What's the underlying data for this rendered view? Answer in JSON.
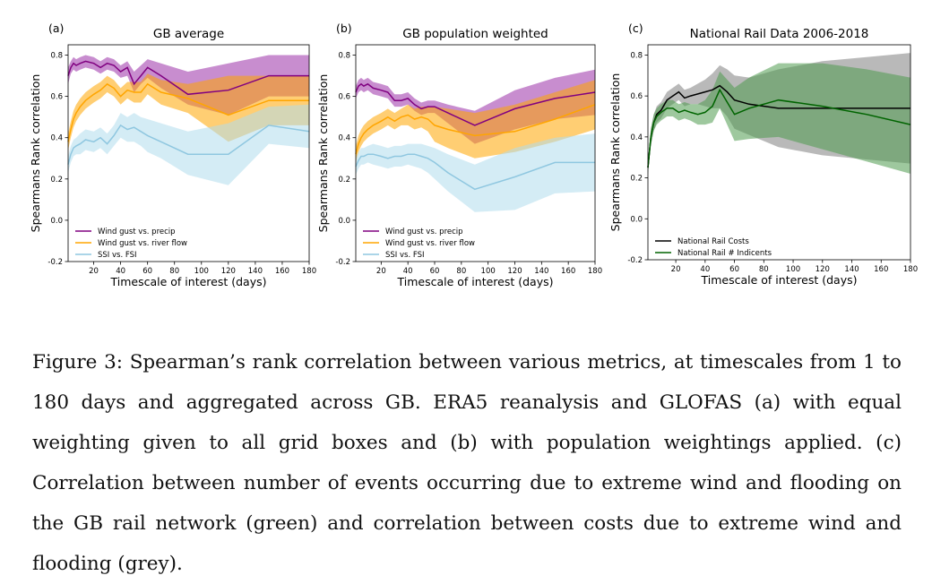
{
  "chart_data": [
    {
      "type": "line",
      "panel_label": "(a)",
      "title": "GB average",
      "xlabel": "Timescale of interest (days)",
      "ylabel": "Spearmans Rank correlation",
      "xlim": [
        1,
        180
      ],
      "ylim": [
        -0.2,
        0.85
      ],
      "xticks": [
        20,
        40,
        60,
        80,
        100,
        120,
        140,
        160,
        180
      ],
      "yticks": [
        -0.2,
        0.0,
        0.2,
        0.4,
        0.6,
        0.8
      ],
      "legend": "bottom-left",
      "series": [
        {
          "name": "Wind gust vs. precip",
          "color": "#800080",
          "band_color": "#9b30a8",
          "x": [
            1,
            3,
            5,
            7,
            10,
            14,
            20,
            25,
            30,
            35,
            40,
            45,
            50,
            55,
            60,
            70,
            90,
            120,
            150,
            180
          ],
          "values": [
            0.7,
            0.74,
            0.76,
            0.75,
            0.76,
            0.77,
            0.76,
            0.74,
            0.76,
            0.75,
            0.72,
            0.74,
            0.66,
            0.7,
            0.74,
            0.7,
            0.61,
            0.63,
            0.7,
            0.7
          ],
          "upper": [
            0.74,
            0.77,
            0.79,
            0.78,
            0.79,
            0.8,
            0.79,
            0.77,
            0.79,
            0.78,
            0.75,
            0.77,
            0.72,
            0.75,
            0.78,
            0.76,
            0.72,
            0.76,
            0.8,
            0.8
          ],
          "lower": [
            0.66,
            0.71,
            0.73,
            0.72,
            0.73,
            0.74,
            0.73,
            0.71,
            0.73,
            0.72,
            0.69,
            0.7,
            0.62,
            0.66,
            0.69,
            0.64,
            0.56,
            0.51,
            0.6,
            0.6
          ]
        },
        {
          "name": "Wind gust vs. river flow",
          "color": "#ffa500",
          "band_color": "#ffa500",
          "x": [
            1,
            3,
            5,
            7,
            10,
            14,
            20,
            25,
            30,
            35,
            40,
            45,
            50,
            55,
            60,
            70,
            90,
            120,
            150,
            180
          ],
          "values": [
            0.38,
            0.44,
            0.49,
            0.52,
            0.55,
            0.58,
            0.61,
            0.63,
            0.66,
            0.64,
            0.6,
            0.63,
            0.62,
            0.62,
            0.66,
            0.62,
            0.59,
            0.51,
            0.58,
            0.58
          ],
          "upper": [
            0.42,
            0.48,
            0.53,
            0.56,
            0.59,
            0.62,
            0.65,
            0.67,
            0.7,
            0.68,
            0.64,
            0.67,
            0.67,
            0.67,
            0.71,
            0.68,
            0.66,
            0.7,
            0.7,
            0.7
          ],
          "lower": [
            0.34,
            0.4,
            0.45,
            0.48,
            0.51,
            0.54,
            0.57,
            0.59,
            0.62,
            0.6,
            0.56,
            0.59,
            0.57,
            0.57,
            0.61,
            0.56,
            0.52,
            0.38,
            0.46,
            0.46
          ]
        },
        {
          "name": "SSI vs. FSI",
          "color": "#8fc7e0",
          "band_color": "#b0dcec",
          "x": [
            1,
            3,
            5,
            7,
            10,
            14,
            20,
            25,
            30,
            35,
            40,
            45,
            50,
            55,
            60,
            70,
            90,
            120,
            150,
            180
          ],
          "values": [
            0.27,
            0.32,
            0.35,
            0.36,
            0.37,
            0.39,
            0.38,
            0.4,
            0.37,
            0.41,
            0.46,
            0.44,
            0.45,
            0.43,
            0.41,
            0.38,
            0.32,
            0.32,
            0.46,
            0.43
          ],
          "upper": [
            0.31,
            0.36,
            0.39,
            0.4,
            0.42,
            0.44,
            0.43,
            0.45,
            0.42,
            0.46,
            0.52,
            0.5,
            0.52,
            0.5,
            0.49,
            0.47,
            0.43,
            0.47,
            0.55,
            0.56
          ],
          "lower": [
            0.23,
            0.28,
            0.31,
            0.32,
            0.32,
            0.34,
            0.33,
            0.35,
            0.32,
            0.36,
            0.4,
            0.38,
            0.38,
            0.36,
            0.33,
            0.3,
            0.22,
            0.17,
            0.37,
            0.35
          ]
        }
      ]
    },
    {
      "type": "line",
      "panel_label": "(b)",
      "title": "GB population weighted",
      "xlabel": "Timescale of interest (days)",
      "ylabel": "Spearmans Rank correlation",
      "xlim": [
        1,
        180
      ],
      "ylim": [
        -0.2,
        0.85
      ],
      "xticks": [
        20,
        40,
        60,
        80,
        100,
        120,
        140,
        160,
        180
      ],
      "yticks": [
        -0.2,
        0.0,
        0.2,
        0.4,
        0.6,
        0.8
      ],
      "legend": "bottom-left",
      "series": [
        {
          "name": "Wind gust vs. precip",
          "color": "#800080",
          "band_color": "#9b30a8",
          "x": [
            1,
            3,
            5,
            7,
            10,
            14,
            20,
            25,
            30,
            35,
            40,
            45,
            50,
            55,
            60,
            70,
            90,
            120,
            150,
            180
          ],
          "values": [
            0.62,
            0.65,
            0.66,
            0.65,
            0.66,
            0.64,
            0.63,
            0.62,
            0.58,
            0.58,
            0.59,
            0.56,
            0.54,
            0.55,
            0.55,
            0.52,
            0.46,
            0.54,
            0.59,
            0.62
          ],
          "upper": [
            0.65,
            0.68,
            0.69,
            0.68,
            0.69,
            0.67,
            0.66,
            0.65,
            0.61,
            0.61,
            0.62,
            0.59,
            0.57,
            0.58,
            0.58,
            0.56,
            0.53,
            0.63,
            0.69,
            0.73
          ],
          "lower": [
            0.59,
            0.62,
            0.63,
            0.62,
            0.63,
            0.61,
            0.6,
            0.59,
            0.55,
            0.55,
            0.56,
            0.53,
            0.51,
            0.52,
            0.52,
            0.47,
            0.37,
            0.44,
            0.49,
            0.51
          ]
        },
        {
          "name": "Wind gust vs. river flow",
          "color": "#ffa500",
          "band_color": "#ffa500",
          "x": [
            1,
            3,
            5,
            7,
            10,
            14,
            20,
            25,
            30,
            35,
            40,
            45,
            50,
            55,
            60,
            70,
            90,
            120,
            150,
            180
          ],
          "values": [
            0.32,
            0.37,
            0.4,
            0.42,
            0.44,
            0.46,
            0.48,
            0.5,
            0.48,
            0.5,
            0.51,
            0.49,
            0.5,
            0.49,
            0.46,
            0.44,
            0.41,
            0.43,
            0.49,
            0.56
          ],
          "upper": [
            0.36,
            0.41,
            0.44,
            0.46,
            0.48,
            0.5,
            0.52,
            0.54,
            0.52,
            0.54,
            0.56,
            0.54,
            0.55,
            0.55,
            0.55,
            0.54,
            0.52,
            0.56,
            0.62,
            0.68
          ],
          "lower": [
            0.28,
            0.33,
            0.36,
            0.38,
            0.4,
            0.42,
            0.44,
            0.46,
            0.44,
            0.46,
            0.46,
            0.44,
            0.45,
            0.43,
            0.38,
            0.35,
            0.3,
            0.33,
            0.38,
            0.44
          ]
        },
        {
          "name": "SSI vs. FSI",
          "color": "#8fc7e0",
          "band_color": "#b0dcec",
          "x": [
            1,
            3,
            5,
            7,
            10,
            14,
            20,
            25,
            30,
            35,
            40,
            45,
            50,
            55,
            60,
            70,
            90,
            120,
            150,
            180
          ],
          "values": [
            0.26,
            0.29,
            0.31,
            0.31,
            0.32,
            0.32,
            0.31,
            0.3,
            0.31,
            0.31,
            0.32,
            0.32,
            0.31,
            0.3,
            0.28,
            0.23,
            0.15,
            0.21,
            0.28,
            0.28
          ],
          "upper": [
            0.3,
            0.33,
            0.35,
            0.35,
            0.36,
            0.37,
            0.36,
            0.35,
            0.36,
            0.36,
            0.37,
            0.37,
            0.37,
            0.36,
            0.35,
            0.32,
            0.27,
            0.35,
            0.4,
            0.42
          ],
          "lower": [
            0.22,
            0.25,
            0.27,
            0.27,
            0.28,
            0.27,
            0.26,
            0.25,
            0.26,
            0.26,
            0.27,
            0.26,
            0.25,
            0.23,
            0.2,
            0.14,
            0.04,
            0.05,
            0.13,
            0.14
          ]
        }
      ]
    },
    {
      "type": "line",
      "panel_label": "(c)",
      "title": "National Rail Data 2006-2018",
      "xlabel": "Timescale of interest (days)",
      "ylabel": "Spearmans Rank correlation",
      "xlim": [
        1,
        180
      ],
      "ylim": [
        -0.2,
        0.85
      ],
      "xticks": [
        20,
        40,
        60,
        80,
        100,
        120,
        140,
        160,
        180
      ],
      "yticks": [
        -0.2,
        0.0,
        0.2,
        0.4,
        0.6,
        0.8
      ],
      "legend": "bottom-left",
      "series": [
        {
          "name": "National Rail Costs",
          "color": "#000000",
          "band_color": "#808080",
          "x": [
            1,
            3,
            5,
            7,
            10,
            14,
            18,
            22,
            26,
            30,
            35,
            40,
            45,
            50,
            55,
            60,
            70,
            90,
            120,
            150,
            180
          ],
          "values": [
            0.25,
            0.4,
            0.47,
            0.51,
            0.53,
            0.58,
            0.6,
            0.62,
            0.59,
            0.6,
            0.61,
            0.62,
            0.63,
            0.65,
            0.62,
            0.58,
            0.56,
            0.54,
            0.54,
            0.54,
            0.54
          ],
          "upper": [
            0.28,
            0.44,
            0.51,
            0.55,
            0.57,
            0.62,
            0.64,
            0.66,
            0.63,
            0.64,
            0.66,
            0.68,
            0.71,
            0.75,
            0.73,
            0.7,
            0.69,
            0.73,
            0.77,
            0.79,
            0.81
          ],
          "lower": [
            0.22,
            0.36,
            0.43,
            0.47,
            0.49,
            0.54,
            0.56,
            0.58,
            0.55,
            0.56,
            0.56,
            0.55,
            0.54,
            0.54,
            0.5,
            0.44,
            0.41,
            0.35,
            0.31,
            0.29,
            0.27
          ]
        },
        {
          "name": "National Rail # Indicents",
          "color": "#006400",
          "band_color": "#4f9a4f",
          "x": [
            1,
            3,
            5,
            7,
            10,
            14,
            18,
            22,
            26,
            30,
            35,
            40,
            45,
            50,
            55,
            60,
            70,
            90,
            120,
            150,
            180
          ],
          "values": [
            0.25,
            0.4,
            0.47,
            0.5,
            0.52,
            0.54,
            0.54,
            0.52,
            0.53,
            0.52,
            0.51,
            0.52,
            0.55,
            0.63,
            0.57,
            0.51,
            0.54,
            0.58,
            0.55,
            0.51,
            0.46
          ],
          "upper": [
            0.28,
            0.44,
            0.51,
            0.54,
            0.56,
            0.58,
            0.58,
            0.56,
            0.57,
            0.56,
            0.56,
            0.58,
            0.63,
            0.72,
            0.68,
            0.64,
            0.69,
            0.76,
            0.76,
            0.73,
            0.69
          ],
          "lower": [
            0.22,
            0.36,
            0.43,
            0.46,
            0.48,
            0.5,
            0.5,
            0.48,
            0.49,
            0.48,
            0.46,
            0.46,
            0.47,
            0.54,
            0.46,
            0.38,
            0.39,
            0.4,
            0.34,
            0.28,
            0.22
          ]
        }
      ]
    }
  ],
  "caption": "Figure 3: Spearman’s rank correlation between various metrics, at timescales from 1 to 180 days and aggregated across GB. ERA5 reanalysis and GLOFAS (a) with equal weighting given to all grid boxes and (b) with population weightings applied. (c) Correlation between number of events occurring due to extreme wind and flooding on the GB rail network (green) and correlation between costs due to extreme wind and flooding (grey)."
}
